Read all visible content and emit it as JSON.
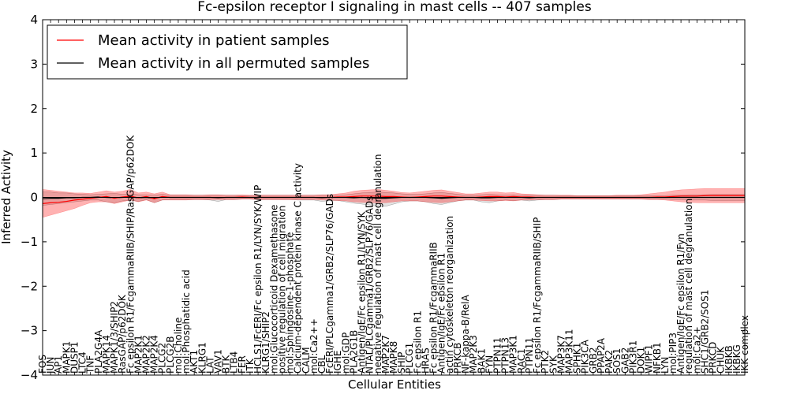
{
  "chart_data": {
    "type": "line",
    "title": "Fc-epsilon receptor I signaling in mast cells -- 407 samples",
    "xlabel": "Cellular Entities",
    "ylabel": "Inferred Activity",
    "ylim": [
      -4,
      4
    ],
    "yticks": [
      -4,
      -3,
      -2,
      -1,
      0,
      1,
      2,
      3,
      4
    ],
    "grid": false,
    "legend_position": "top-left",
    "categories": [
      "FOS",
      "JUN",
      "AP1",
      "MAPK1",
      "DUSP1",
      "LTC4",
      "TNF",
      "PLA2G4A",
      "MAPK14",
      "MAPK1/3/SHIP2",
      "RasGAP/p62DOK",
      "Fc epsilon R1/FcgammaRIIB/SHIP/RasGAP/p62DOK",
      "MAP2K1",
      "MAP2K2",
      "MAP2K4",
      "PLCG2",
      "PLCG2B",
      "mol:Choline",
      "mol:Phosphatidic acid",
      "AKT1",
      "KLRG1",
      "LAT",
      "VAV1",
      "BTK",
      "LTB4",
      "FER",
      "ITK",
      "HCLS1/FcERI/Fc epsilon R1/LYN/SYK/WIP",
      "KLRG1/SHIP2",
      "mol:Glucocorticoid Dexamethasone",
      "positive regulation of cell migration",
      "mol:Sphingosine-1-phosphate",
      "Calcium-dependent protein kinase C activity",
      "CALM",
      "mol:Ca2++",
      "CBL",
      "FcERI/PLCgamma1/GRB2/SLP76/GADs",
      "IGHE",
      "mol:GDP",
      "PLA2G1B",
      "Antigen/IgE/Fc epsilon R1/LYN/SYK",
      "NTAL/PLCgamma1/GRB2/SLP76/GADs",
      "negative regulation of mast cell degranulation",
      "MAP2K7",
      "MAPK8",
      "SHIP",
      "PLCG1",
      "Fc epsilon R1",
      "HRAS",
      "Fc epsilon R1/FcgammaRIIB",
      "Antigen/IgE/Fc epsilon R1",
      "actin cytoskeleton reorganization",
      "PRKCB",
      "NF-kappa-B/RelA",
      "MAP2K3",
      "BAK1",
      "FYN",
      "PTPN11",
      "PTPN13",
      "MAP3K1",
      "RAC1",
      "PTPN11",
      "Fc epsilon R1/FcgammaRIIB/SHIP",
      "PTK2",
      "SYK",
      "MAP3K7",
      "MAP3K11",
      "SPHK1",
      "PIK3CA",
      "GRB2",
      "PPAP2A",
      "PAK2",
      "SOS1",
      "GAB2",
      "PIK3R1",
      "DOK1",
      "WIPF1",
      "NFKB1",
      "LYN",
      "mol:PIP3",
      "Antigen/IgE/Fc epsilon R1/Fyn",
      "regulation of mast cell degranulation",
      "mol:Ca2+",
      "SHC1/GRB2/SOS1",
      "PRKCD",
      "CHUK",
      "IKBKB",
      "IKBKG",
      "IKK complex"
    ],
    "series": [
      {
        "name": "Mean activity in all permuted samples",
        "color": "#000000",
        "values": [
          -0.03,
          -0.02,
          -0.02,
          -0.01,
          -0.01,
          0.0,
          0.0,
          0.01,
          0.0,
          -0.01,
          0.0,
          0.01,
          -0.01,
          0.0,
          -0.02,
          0.01,
          0.0,
          0.0,
          0.0,
          0.0,
          0.0,
          0.0,
          -0.01,
          0.0,
          0.0,
          0.0,
          0.0,
          0.0,
          0.0,
          0.0,
          0.0,
          0.0,
          0.0,
          0.0,
          0.0,
          -0.01,
          0.0,
          0.0,
          0.0,
          -0.01,
          0.0,
          -0.01,
          -0.02,
          -0.02,
          -0.01,
          0.0,
          0.0,
          0.0,
          0.0,
          -0.01,
          -0.02,
          -0.01,
          0.0,
          0.0,
          0.0,
          -0.01,
          -0.01,
          0.0,
          0.0,
          0.0,
          0.0,
          -0.01,
          0.0,
          0.0,
          0.0,
          0.0,
          0.0,
          0.0,
          0.0,
          0.0,
          0.0,
          0.0,
          0.0,
          0.0,
          0.0,
          0.0,
          0.0,
          0.0,
          0.0,
          0.0,
          0.0,
          0.0,
          0.0,
          0.0,
          0.0,
          0.0,
          0.0,
          0.0,
          0.0
        ],
        "lower": [
          -0.18,
          -0.16,
          -0.14,
          -0.12,
          -0.1,
          -0.08,
          -0.06,
          -0.06,
          -0.1,
          -0.12,
          -0.08,
          -0.06,
          -0.09,
          -0.05,
          -0.12,
          -0.06,
          -0.05,
          -0.05,
          -0.05,
          -0.05,
          -0.05,
          -0.06,
          -0.09,
          -0.05,
          -0.05,
          -0.04,
          -0.04,
          -0.05,
          -0.05,
          -0.05,
          -0.05,
          -0.05,
          -0.06,
          -0.06,
          -0.06,
          -0.09,
          -0.07,
          -0.07,
          -0.1,
          -0.13,
          -0.15,
          -0.17,
          -0.2,
          -0.2,
          -0.15,
          -0.1,
          -0.08,
          -0.08,
          -0.1,
          -0.14,
          -0.16,
          -0.12,
          -0.08,
          -0.06,
          -0.06,
          -0.1,
          -0.12,
          -0.08,
          -0.06,
          -0.07,
          -0.06,
          -0.08,
          -0.06,
          -0.05,
          -0.05,
          -0.04,
          -0.04,
          -0.04,
          -0.04,
          -0.04,
          -0.04,
          -0.04,
          -0.04,
          -0.04,
          -0.04,
          -0.04,
          -0.04,
          -0.04,
          -0.04,
          -0.05,
          -0.05,
          -0.06,
          -0.06,
          -0.06,
          -0.07,
          -0.07,
          -0.07,
          -0.07,
          -0.07
        ],
        "upper": [
          0.12,
          0.12,
          0.1,
          0.1,
          0.08,
          0.07,
          0.06,
          0.07,
          0.08,
          0.09,
          0.07,
          0.08,
          0.06,
          0.06,
          0.05,
          0.07,
          0.05,
          0.05,
          0.05,
          0.05,
          0.05,
          0.05,
          0.05,
          0.05,
          0.05,
          0.04,
          0.04,
          0.05,
          0.05,
          0.05,
          0.05,
          0.05,
          0.05,
          0.05,
          0.05,
          0.05,
          0.05,
          0.05,
          0.06,
          0.08,
          0.1,
          0.11,
          0.12,
          0.11,
          0.1,
          0.08,
          0.07,
          0.07,
          0.08,
          0.1,
          0.11,
          0.09,
          0.07,
          0.05,
          0.05,
          0.06,
          0.07,
          0.06,
          0.05,
          0.06,
          0.05,
          0.06,
          0.05,
          0.05,
          0.05,
          0.04,
          0.04,
          0.04,
          0.04,
          0.04,
          0.04,
          0.04,
          0.04,
          0.04,
          0.04,
          0.04,
          0.04,
          0.04,
          0.04,
          0.05,
          0.05,
          0.06,
          0.06,
          0.06,
          0.07,
          0.07,
          0.07,
          0.07,
          0.07
        ]
      },
      {
        "name": "Mean activity in patient samples",
        "color": "#ff0000",
        "values": [
          -0.14,
          -0.12,
          -0.11,
          -0.09,
          -0.06,
          -0.04,
          -0.02,
          0.0,
          0.02,
          -0.02,
          0.01,
          0.03,
          -0.01,
          0.02,
          -0.03,
          0.02,
          0.0,
          0.0,
          0.0,
          0.0,
          0.0,
          0.0,
          0.0,
          0.0,
          0.0,
          0.01,
          0.0,
          0.0,
          0.0,
          0.0,
          0.0,
          0.0,
          0.0,
          0.0,
          0.0,
          0.0,
          0.0,
          0.01,
          0.01,
          0.02,
          0.03,
          0.03,
          0.03,
          0.02,
          0.02,
          0.01,
          0.0,
          0.01,
          0.02,
          0.03,
          0.03,
          0.02,
          0.01,
          0.0,
          0.0,
          0.01,
          0.02,
          0.02,
          0.01,
          0.02,
          0.01,
          0.01,
          0.0,
          0.0,
          0.0,
          0.0,
          0.0,
          0.0,
          0.0,
          0.0,
          0.0,
          0.0,
          0.0,
          0.0,
          0.0,
          0.0,
          0.0,
          0.01,
          0.01,
          0.02,
          0.03,
          0.03,
          0.03,
          0.04,
          0.04,
          0.04,
          0.04,
          0.04,
          0.04
        ],
        "lower": [
          -0.45,
          -0.4,
          -0.35,
          -0.3,
          -0.25,
          -0.18,
          -0.12,
          -0.1,
          -0.1,
          -0.14,
          -0.1,
          -0.06,
          -0.1,
          -0.06,
          -0.12,
          -0.06,
          -0.06,
          -0.06,
          -0.06,
          -0.05,
          -0.05,
          -0.05,
          -0.05,
          -0.05,
          -0.05,
          -0.04,
          -0.04,
          -0.05,
          -0.05,
          -0.05,
          -0.05,
          -0.05,
          -0.05,
          -0.05,
          -0.05,
          -0.06,
          -0.06,
          -0.07,
          -0.08,
          -0.1,
          -0.11,
          -0.12,
          -0.12,
          -0.12,
          -0.1,
          -0.08,
          -0.08,
          -0.08,
          -0.1,
          -0.11,
          -0.12,
          -0.1,
          -0.08,
          -0.06,
          -0.06,
          -0.07,
          -0.08,
          -0.08,
          -0.07,
          -0.08,
          -0.06,
          -0.06,
          -0.05,
          -0.05,
          -0.05,
          -0.04,
          -0.04,
          -0.04,
          -0.04,
          -0.04,
          -0.04,
          -0.04,
          -0.04,
          -0.04,
          -0.04,
          -0.04,
          -0.05,
          -0.05,
          -0.06,
          -0.08,
          -0.1,
          -0.11,
          -0.12,
          -0.12,
          -0.12,
          -0.12,
          -0.12,
          -0.12,
          -0.12
        ],
        "upper": [
          0.18,
          0.16,
          0.14,
          0.12,
          0.1,
          0.1,
          0.09,
          0.12,
          0.15,
          0.12,
          0.14,
          0.18,
          0.1,
          0.12,
          0.08,
          0.12,
          0.06,
          0.06,
          0.06,
          0.05,
          0.05,
          0.06,
          0.06,
          0.05,
          0.05,
          0.06,
          0.05,
          0.05,
          0.05,
          0.05,
          0.05,
          0.05,
          0.05,
          0.05,
          0.05,
          0.06,
          0.06,
          0.08,
          0.1,
          0.14,
          0.16,
          0.17,
          0.18,
          0.16,
          0.14,
          0.11,
          0.1,
          0.12,
          0.14,
          0.16,
          0.17,
          0.14,
          0.11,
          0.08,
          0.08,
          0.1,
          0.12,
          0.12,
          0.1,
          0.11,
          0.08,
          0.07,
          0.06,
          0.05,
          0.05,
          0.05,
          0.05,
          0.04,
          0.04,
          0.04,
          0.04,
          0.04,
          0.05,
          0.05,
          0.05,
          0.06,
          0.08,
          0.1,
          0.12,
          0.15,
          0.17,
          0.18,
          0.19,
          0.2,
          0.2,
          0.2,
          0.2,
          0.2,
          0.2
        ]
      }
    ]
  }
}
